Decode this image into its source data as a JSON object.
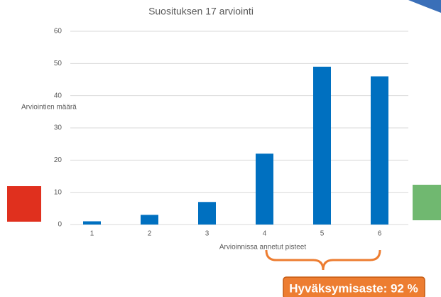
{
  "chart_data": {
    "type": "bar",
    "title": "Suosituksen 17 arviointi",
    "x_label": "Arvioinnissa annetut pisteet",
    "y_label": "Arviointien määrä",
    "categories": [
      "1",
      "2",
      "3",
      "4",
      "5",
      "6"
    ],
    "values": [
      1,
      3,
      7,
      22,
      49,
      46
    ],
    "color": "#0070c0",
    "ylim": [
      0,
      60
    ],
    "yticks": [
      0,
      10,
      20,
      30,
      40,
      50,
      60
    ],
    "grid": true,
    "annotation": "Hyväksymisaste: 92 %"
  }
}
